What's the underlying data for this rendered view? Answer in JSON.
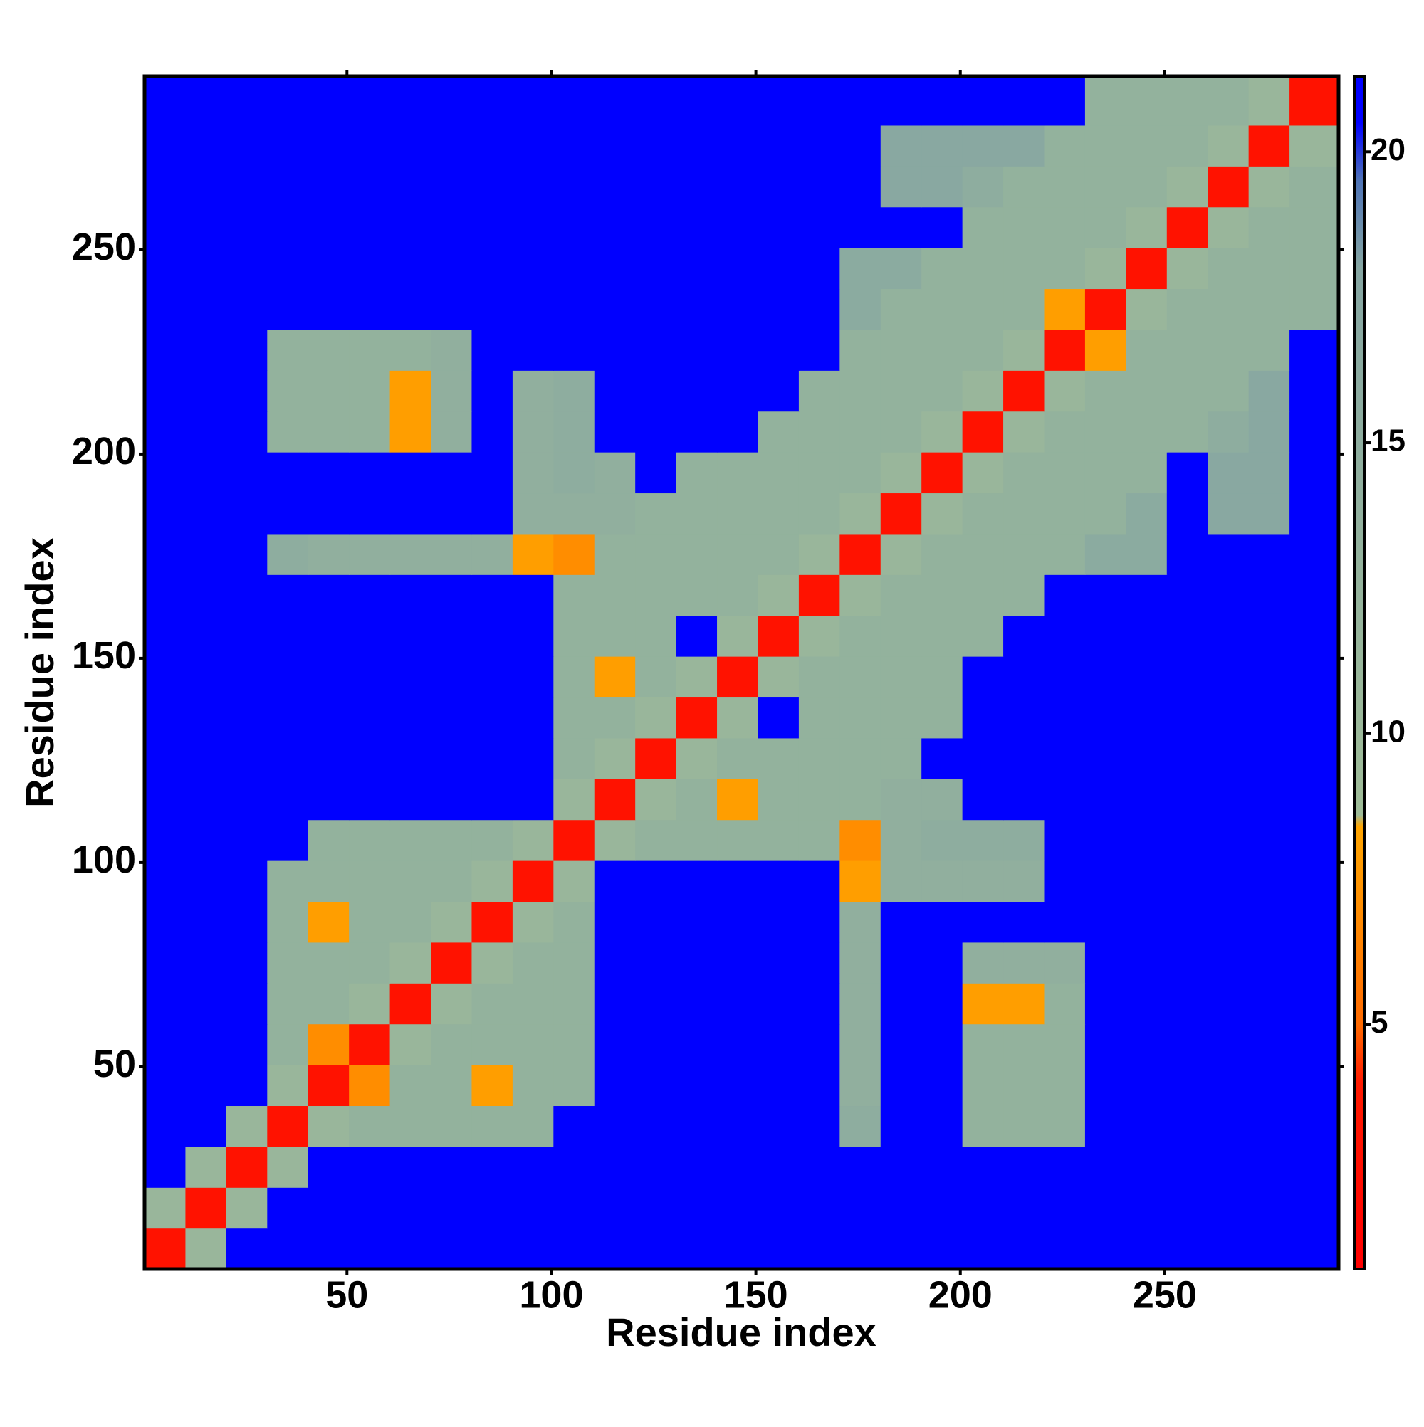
{
  "chart_data": {
    "type": "heatmap",
    "xlabel": "Residue index",
    "ylabel": "Residue index",
    "xlim": [
      0.5,
      292.5
    ],
    "ylim": [
      0.5,
      292.5
    ],
    "xticks": [
      50,
      100,
      150,
      200,
      250
    ],
    "yticks": [
      50,
      100,
      150,
      200,
      250
    ],
    "zlim": [
      0.8,
      21.3
    ],
    "zticks": [
      5,
      10,
      15,
      20
    ],
    "colorscale": [
      {
        "value": 0.8,
        "color": "#ff0000"
      },
      {
        "value": 4,
        "color": "#ff1a00"
      },
      {
        "value": 5,
        "color": "#ff6a00"
      },
      {
        "value": 8.4,
        "color": "#ffa500"
      },
      {
        "value": 8.6,
        "color": "#9fbc98"
      },
      {
        "value": 18,
        "color": "#86a6a2"
      },
      {
        "value": 19.5,
        "color": "#4f74b6"
      },
      {
        "value": 20.5,
        "color": "#0000ff"
      },
      {
        "value": 21.3,
        "color": "#0000ff"
      }
    ],
    "x_edges": [
      0.5,
      10.5,
      20.5,
      30.5,
      40.5,
      50.5,
      60.5,
      70.5,
      80.5,
      90.5,
      100.5,
      110.5,
      120.5,
      130.5,
      140.5,
      150.5,
      160.5,
      170.5,
      180.5,
      190.5,
      200.5,
      210.5,
      220.5,
      230.5,
      240.5,
      250.5,
      260.5,
      270.5,
      280.5,
      292.5
    ],
    "y_edges": [
      0.5,
      10.5,
      20.5,
      30.5,
      40.5,
      50.5,
      60.5,
      70.5,
      80.5,
      90.5,
      100.5,
      110.5,
      120.5,
      130.5,
      140.5,
      150.5,
      160.5,
      170.5,
      180.5,
      190.5,
      200.5,
      210.5,
      220.5,
      230.5,
      240.5,
      250.5,
      260.5,
      270.5,
      280.5,
      292.5
    ],
    "z": [
      [
        3,
        11,
        21,
        21,
        21,
        21,
        21,
        21,
        21,
        21,
        21,
        21,
        21,
        21,
        21,
        21,
        21,
        21,
        21,
        21,
        21,
        21,
        21,
        21,
        21,
        21,
        21,
        21,
        21
      ],
      [
        11,
        3,
        11,
        21,
        21,
        21,
        21,
        21,
        21,
        21,
        21,
        21,
        21,
        21,
        21,
        21,
        21,
        21,
        21,
        21,
        21,
        21,
        21,
        21,
        21,
        21,
        21,
        21,
        21
      ],
      [
        21,
        11,
        3,
        11,
        21,
        21,
        21,
        21,
        21,
        21,
        21,
        21,
        21,
        21,
        21,
        21,
        21,
        21,
        21,
        21,
        21,
        21,
        21,
        21,
        21,
        21,
        21,
        21,
        21
      ],
      [
        21,
        21,
        11,
        3,
        11,
        13,
        13,
        13,
        13,
        13,
        21,
        21,
        21,
        21,
        21,
        21,
        21,
        15,
        21,
        21,
        13,
        13,
        13,
        21,
        21,
        21,
        21,
        21,
        21
      ],
      [
        21,
        21,
        21,
        11,
        3,
        7,
        13,
        13,
        8,
        13,
        13,
        21,
        21,
        21,
        21,
        21,
        21,
        14,
        21,
        21,
        13,
        13,
        13,
        21,
        21,
        21,
        21,
        21,
        21
      ],
      [
        21,
        21,
        21,
        13,
        7,
        3,
        11,
        13,
        13,
        13,
        13,
        21,
        21,
        21,
        21,
        21,
        21,
        14,
        21,
        21,
        13,
        13,
        13,
        21,
        21,
        21,
        21,
        21,
        21
      ],
      [
        21,
        21,
        21,
        13,
        13,
        11,
        3,
        11,
        13,
        13,
        13,
        21,
        21,
        21,
        21,
        21,
        21,
        14,
        21,
        21,
        8,
        8,
        13,
        21,
        21,
        21,
        21,
        21,
        21
      ],
      [
        21,
        21,
        21,
        13,
        13,
        13,
        11,
        3,
        11,
        13,
        13,
        21,
        21,
        21,
        21,
        21,
        21,
        14,
        21,
        21,
        14,
        14,
        14,
        21,
        21,
        21,
        21,
        21,
        21
      ],
      [
        21,
        21,
        21,
        13,
        8,
        13,
        13,
        11,
        3,
        11,
        13,
        21,
        21,
        21,
        21,
        21,
        21,
        14,
        21,
        21,
        21,
        21,
        21,
        21,
        21,
        21,
        21,
        21,
        21
      ],
      [
        21,
        21,
        21,
        13,
        13,
        13,
        13,
        13,
        11,
        3,
        11,
        21,
        21,
        21,
        21,
        21,
        21,
        8,
        14,
        14,
        14,
        14,
        21,
        21,
        21,
        21,
        21,
        21,
        21
      ],
      [
        21,
        21,
        21,
        21,
        13,
        13,
        13,
        13,
        13,
        11,
        3,
        11,
        13,
        13,
        13,
        13,
        13,
        7,
        14,
        15,
        15,
        15,
        21,
        21,
        21,
        21,
        21,
        21,
        21
      ],
      [
        21,
        21,
        21,
        21,
        21,
        21,
        21,
        21,
        21,
        21,
        11,
        3,
        11,
        13,
        8,
        13,
        13,
        13,
        14,
        14,
        21,
        21,
        21,
        21,
        21,
        21,
        21,
        21,
        21
      ],
      [
        21,
        21,
        21,
        21,
        21,
        21,
        21,
        21,
        21,
        21,
        13,
        11,
        3,
        11,
        13,
        13,
        13,
        13,
        13,
        21,
        21,
        21,
        21,
        21,
        21,
        21,
        21,
        21,
        21
      ],
      [
        21,
        21,
        21,
        21,
        21,
        21,
        21,
        21,
        21,
        21,
        13,
        13,
        11,
        3,
        11,
        21,
        13,
        13,
        13,
        13,
        21,
        21,
        21,
        21,
        21,
        21,
        21,
        21,
        21
      ],
      [
        21,
        21,
        21,
        21,
        21,
        21,
        21,
        21,
        21,
        21,
        13,
        8,
        13,
        11,
        3,
        11,
        13,
        13,
        13,
        13,
        21,
        21,
        21,
        21,
        21,
        21,
        21,
        21,
        21
      ],
      [
        21,
        21,
        21,
        21,
        21,
        21,
        21,
        21,
        21,
        21,
        13,
        13,
        13,
        21,
        11,
        3,
        11,
        13,
        13,
        13,
        13,
        21,
        21,
        21,
        21,
        21,
        21,
        21,
        21
      ],
      [
        21,
        21,
        21,
        21,
        21,
        21,
        21,
        21,
        21,
        21,
        13,
        13,
        13,
        13,
        13,
        11,
        3,
        11,
        13,
        13,
        13,
        13,
        21,
        21,
        21,
        21,
        21,
        21,
        21
      ],
      [
        21,
        21,
        21,
        15,
        14,
        14,
        14,
        14,
        14,
        8,
        7,
        13,
        13,
        13,
        13,
        13,
        11,
        3,
        11,
        13,
        13,
        13,
        13,
        16,
        16,
        21,
        21,
        21,
        21
      ],
      [
        21,
        21,
        21,
        21,
        21,
        21,
        21,
        21,
        21,
        14,
        14,
        14,
        13,
        13,
        13,
        13,
        13,
        11,
        3,
        11,
        13,
        13,
        13,
        13,
        16,
        21,
        17,
        17,
        21
      ],
      [
        21,
        21,
        21,
        21,
        21,
        21,
        21,
        21,
        21,
        14,
        15,
        14,
        21,
        13,
        13,
        13,
        13,
        13,
        11,
        3,
        11,
        13,
        13,
        13,
        13,
        21,
        17,
        17,
        21
      ],
      [
        21,
        21,
        21,
        13,
        13,
        13,
        8,
        14,
        21,
        14,
        15,
        21,
        21,
        21,
        21,
        13,
        13,
        13,
        13,
        11,
        3,
        11,
        13,
        13,
        13,
        13,
        15,
        17,
        21
      ],
      [
        21,
        21,
        21,
        13,
        13,
        13,
        8,
        14,
        21,
        14,
        15,
        21,
        21,
        21,
        21,
        21,
        13,
        13,
        13,
        13,
        11,
        3,
        11,
        13,
        13,
        13,
        13,
        17,
        21
      ],
      [
        21,
        21,
        21,
        13,
        13,
        13,
        13,
        14,
        21,
        21,
        21,
        21,
        21,
        21,
        21,
        21,
        21,
        13,
        13,
        13,
        13,
        11,
        3,
        8,
        13,
        13,
        13,
        13,
        21
      ],
      [
        21,
        21,
        21,
        21,
        21,
        21,
        21,
        21,
        21,
        21,
        21,
        21,
        21,
        21,
        21,
        21,
        21,
        16,
        13,
        13,
        13,
        13,
        8,
        3,
        11,
        13,
        13,
        13,
        13
      ],
      [
        21,
        21,
        21,
        21,
        21,
        21,
        21,
        21,
        21,
        21,
        21,
        21,
        21,
        21,
        21,
        21,
        21,
        16,
        16,
        13,
        13,
        13,
        13,
        11,
        3,
        11,
        13,
        13,
        13
      ],
      [
        21,
        21,
        21,
        21,
        21,
        21,
        21,
        21,
        21,
        21,
        21,
        21,
        21,
        21,
        21,
        21,
        21,
        21,
        21,
        21,
        13,
        13,
        13,
        13,
        11,
        3,
        11,
        13,
        13
      ],
      [
        21,
        21,
        21,
        21,
        21,
        21,
        21,
        21,
        21,
        21,
        21,
        21,
        21,
        21,
        21,
        21,
        21,
        21,
        17,
        17,
        15,
        13,
        13,
        13,
        13,
        11,
        3,
        11,
        13
      ],
      [
        21,
        21,
        21,
        21,
        21,
        21,
        21,
        21,
        21,
        21,
        21,
        21,
        21,
        21,
        21,
        21,
        21,
        21,
        17,
        17,
        17,
        17,
        13,
        13,
        13,
        13,
        11,
        3,
        11
      ],
      [
        21,
        21,
        21,
        21,
        21,
        21,
        21,
        21,
        21,
        21,
        21,
        21,
        21,
        21,
        21,
        21,
        21,
        21,
        21,
        21,
        21,
        21,
        21,
        13,
        13,
        13,
        13,
        11,
        3
      ]
    ]
  }
}
